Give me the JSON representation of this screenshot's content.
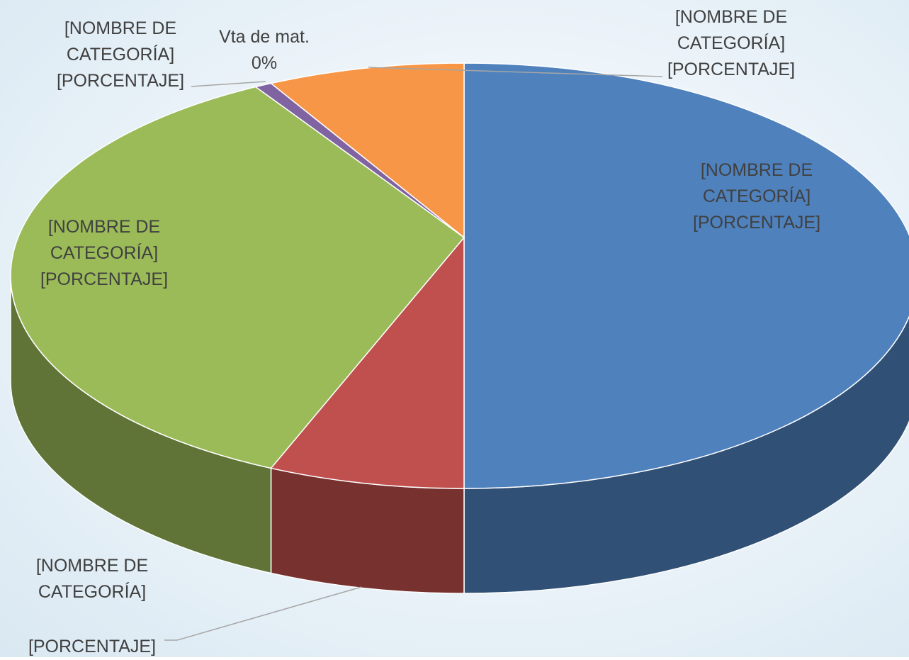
{
  "chart_data": {
    "type": "pie",
    "categories": [
      "[NOMBRE DE CATEGORÍA]",
      "[NOMBRE DE CATEGORÍA]",
      "[NOMBRE DE CATEGORÍA]",
      "[NOMBRE DE CATEGORÍA]",
      "Vta de mat.",
      "[NOMBRE DE CATEGORÍA]"
    ],
    "values": [
      50,
      7,
      35.4,
      0.6,
      0,
      7
    ],
    "value_labels": [
      "[PORCENTAJE]",
      "[PORCENTAJE]",
      "[PORCENTAJE]",
      "[PORCENTAJE]",
      "0%",
      "[PORCENTAJE]"
    ],
    "colors": [
      "#4f81bd",
      "#c0504d",
      "#9bbb59",
      "#8064a2",
      "#4bacc6",
      "#f79646"
    ]
  }
}
